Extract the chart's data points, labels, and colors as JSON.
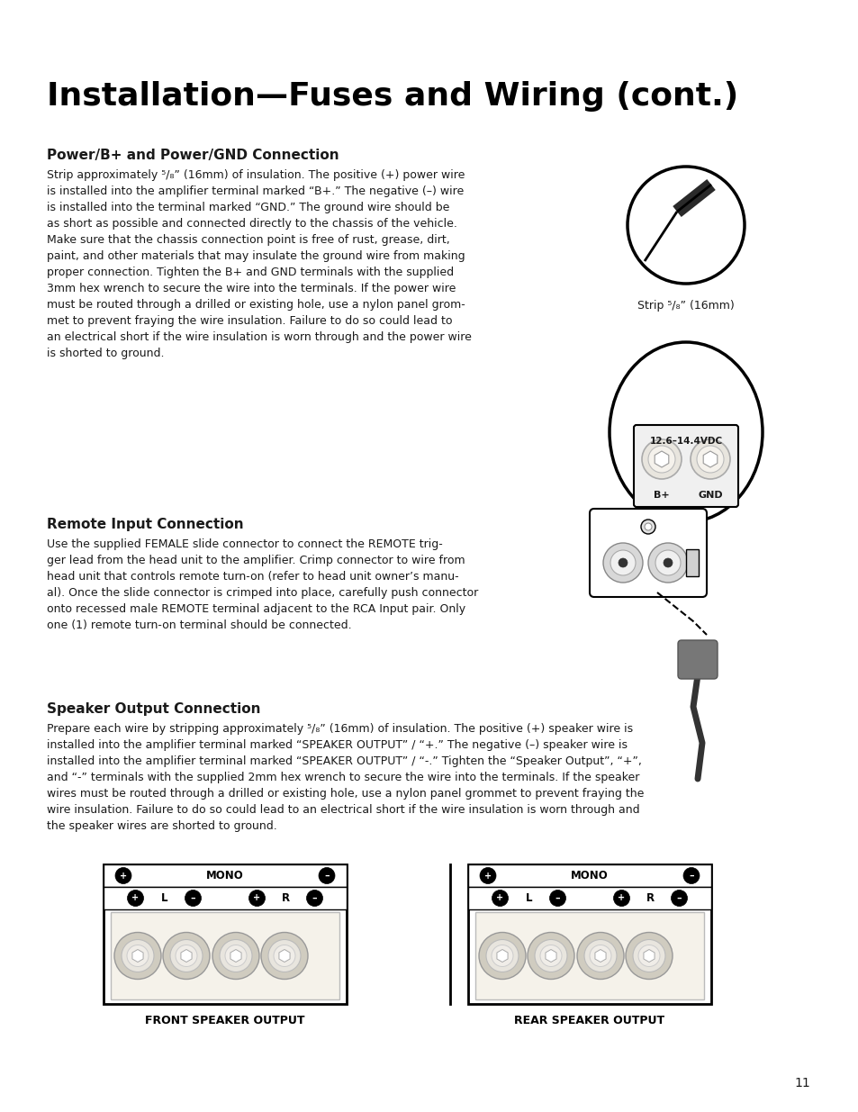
{
  "title": "Installation—Fuses and Wiring (cont.)",
  "section1_heading": "Power/B+ and Power/GND Connection",
  "section1_body": "Strip approximately ⁵/₈” (16mm) of insulation. The positive (+) power wire\nis installed into the amplifier terminal marked “B+.” The negative (–) wire\nis installed into the terminal marked “GND.” The ground wire should be\nas short as possible and connected directly to the chassis of the vehicle.\nMake sure that the chassis connection point is free of rust, grease, dirt,\npaint, and other materials that may insulate the ground wire from making\nproper connection. Tighten the B+ and GND terminals with the supplied\n3mm hex wrench to secure the wire into the terminals. If the power wire\nmust be routed through a drilled or existing hole, use a nylon panel grom-\nmet to prevent fraying the wire insulation. Failure to do so could lead to\nan electrical short if the wire insulation is worn through and the power wire\nis shorted to ground.",
  "strip_caption": "Strip ⁵/₈” (16mm)",
  "section2_heading": "Remote Input Connection",
  "section2_body": "Use the supplied FEMALE slide connector to connect the REMOTE trig-\nger lead from the head unit to the amplifier. Crimp connector to wire from\nhead unit that controls remote turn-on (refer to head unit owner’s manu-\nal). Once the slide connector is crimped into place, carefully push connector\nonto recessed male REMOTE terminal adjacent to the RCA Input pair. Only\none (1) remote turn-on terminal should be connected.",
  "section3_heading": "Speaker Output Connection",
  "section3_body": "Prepare each wire by stripping approximately ⁵/₈” (16mm) of insulation. The positive (+) speaker wire is\ninstalled into the amplifier terminal marked “SPEAKER OUTPUT” / “+.” The negative (–) speaker wire is\ninstalled into the amplifier terminal marked “SPEAKER OUTPUT” / “-.” Tighten the “Speaker Output”, “+”,\nand “-” terminals with the supplied 2mm hex wrench to secure the wire into the terminals. If the speaker\nwires must be routed through a drilled or existing hole, use a nylon panel grommet to prevent fraying the\nwire insulation. Failure to do so could lead to an electrical short if the wire insulation is worn through and\nthe speaker wires are shorted to ground.",
  "front_label": "FRONT SPEAKER OUTPUT",
  "rear_label": "REAR SPEAKER OUTPUT",
  "bplus_label": "B+",
  "gnd_label": "GND",
  "voltage_label": "12.6–14.4VDC",
  "page_number": "11",
  "bg_color": "#ffffff",
  "text_color": "#1a1a1a",
  "title_color": "#000000"
}
